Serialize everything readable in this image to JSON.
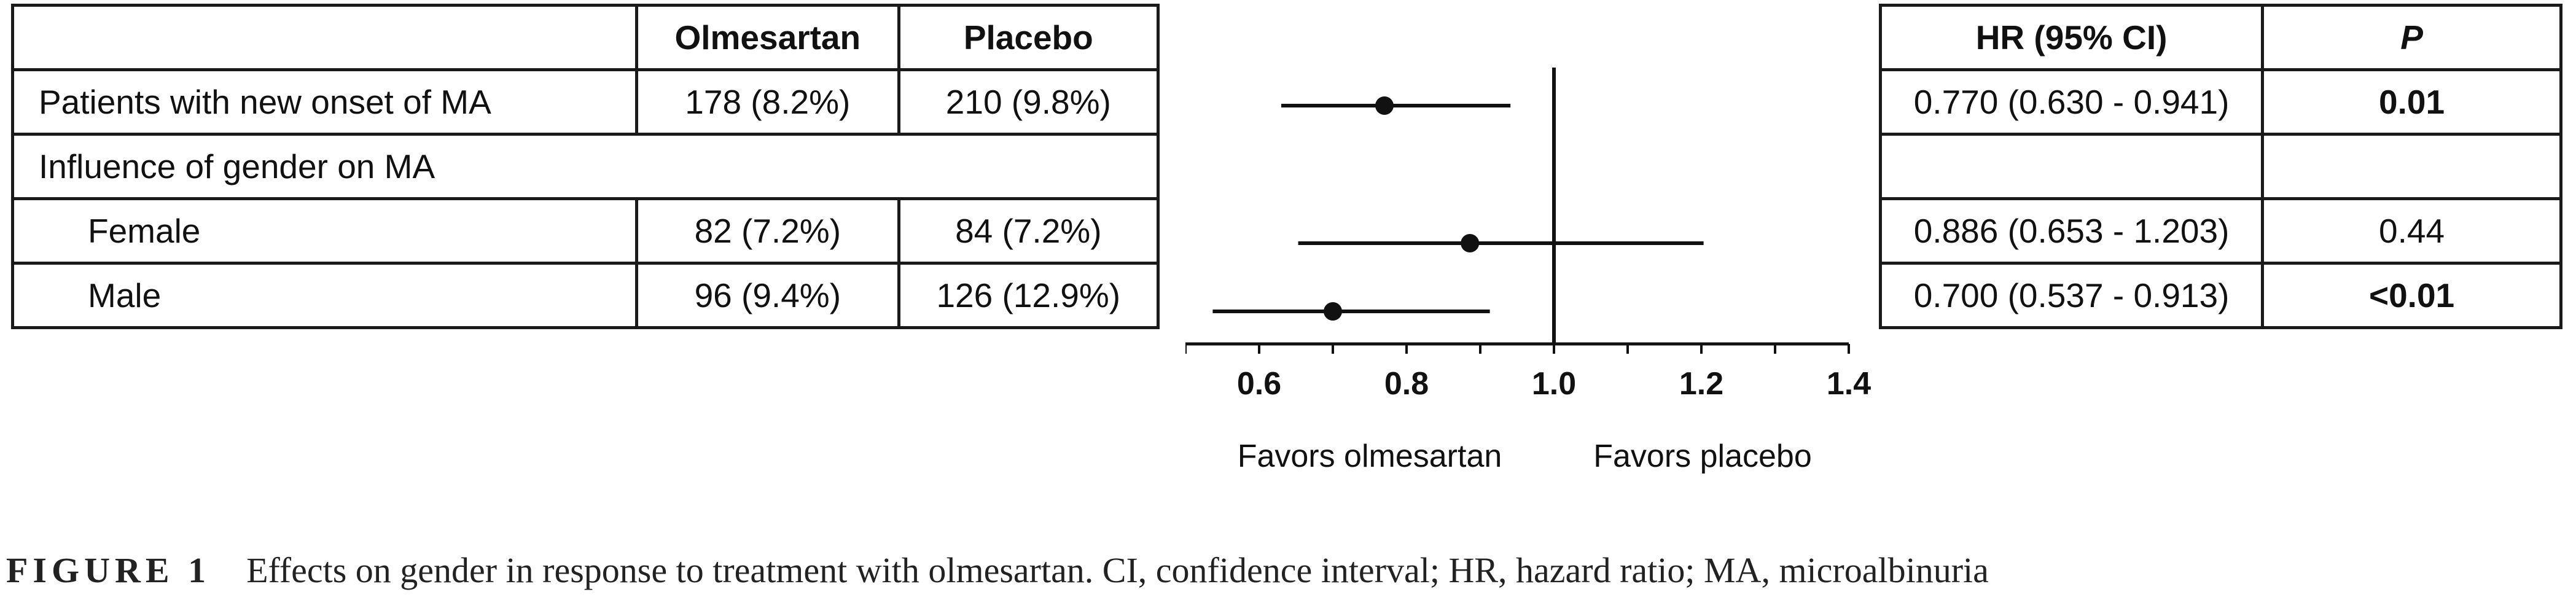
{
  "table": {
    "headers": {
      "label": "",
      "olmesartan": "Olmesartan",
      "placebo": "Placebo"
    },
    "rows": [
      {
        "label": "Patients with new onset of MA",
        "olmesartan": "178 (8.2%)",
        "placebo": "210 (9.8%)"
      },
      {
        "label": "Influence of gender on MA"
      },
      {
        "label": "Female",
        "olmesartan": "82 (7.2%)",
        "placebo": "84 (7.2%)"
      },
      {
        "label": "Male",
        "olmesartan": "96 (9.4%)",
        "placebo": "126 (12.9%)"
      }
    ]
  },
  "right_table": {
    "headers": {
      "hr": "HR (95% CI)",
      "p": "P"
    },
    "rows": [
      {
        "hr": "0.770 (0.630 - 0.941)",
        "p": "0.01"
      },
      {
        "hr": "",
        "p": ""
      },
      {
        "hr": "0.886 (0.653 - 1.203)",
        "p": "0.44"
      },
      {
        "hr": "0.700 (0.537 - 0.913)",
        "p": "<0.01"
      }
    ]
  },
  "chart_data": {
    "type": "forest",
    "reference_line": 1.0,
    "xlim": [
      0.5,
      1.4
    ],
    "xticks": [
      "0.6",
      "0.8",
      "1.0",
      "1.2",
      "1.4"
    ],
    "left_label": "Favors olmesartan",
    "right_label": "Favors placebo",
    "points": [
      {
        "label": "Patients with new onset of MA",
        "hr": 0.77,
        "lower": 0.63,
        "upper": 0.941
      },
      {
        "label": "Female",
        "hr": 0.886,
        "lower": 0.653,
        "upper": 1.203
      },
      {
        "label": "Male",
        "hr": 0.7,
        "lower": 0.537,
        "upper": 0.913
      }
    ]
  },
  "caption": {
    "label": "FIGURE 1",
    "text": "Effects on gender in response to treatment with olmesartan. CI, confidence interval; HR, hazard ratio; MA, microalbinuria"
  }
}
